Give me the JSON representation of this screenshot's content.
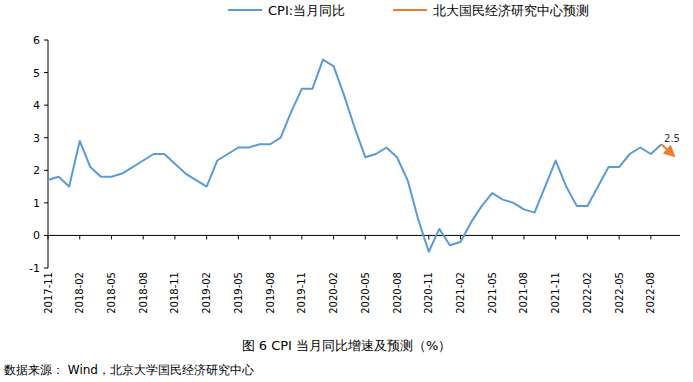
{
  "chart_data": {
    "type": "line",
    "title": "图 6 CPI 当月同比增速及预测（%）",
    "source": "数据来源：  Wind，北京大学国民经济研究中心",
    "categories": [
      "2017-11",
      null,
      null,
      "2018-02",
      null,
      null,
      "2018-05",
      null,
      null,
      "2018-08",
      null,
      null,
      "2018-11",
      null,
      null,
      "2019-02",
      null,
      null,
      "2019-05",
      null,
      null,
      "2019-08",
      null,
      null,
      "2019-11",
      null,
      null,
      "2020-02",
      null,
      null,
      "2020-05",
      null,
      null,
      "2020-08",
      null,
      null,
      "2020-11",
      null,
      null,
      "2021-02",
      null,
      null,
      "2021-05",
      null,
      null,
      "2021-08",
      null,
      null,
      "2021-11",
      null,
      null,
      "2022-02",
      null,
      null,
      "2022-05",
      null,
      null,
      "2022-08",
      null,
      null
    ],
    "series": [
      {
        "name": "CPI:当月同比",
        "color": "#5b9bd5",
        "line_style": "solid",
        "values": [
          1.7,
          1.8,
          1.5,
          2.9,
          2.1,
          1.8,
          1.8,
          1.9,
          2.1,
          2.3,
          2.5,
          2.5,
          2.2,
          1.9,
          1.7,
          1.5,
          2.3,
          2.5,
          2.7,
          2.7,
          2.8,
          2.8,
          3.0,
          3.8,
          4.5,
          4.5,
          5.4,
          5.2,
          4.3,
          3.3,
          2.4,
          2.5,
          2.7,
          2.4,
          1.7,
          0.5,
          -0.5,
          0.2,
          -0.3,
          -0.2,
          0.4,
          0.9,
          1.3,
          1.1,
          1.0,
          0.8,
          0.7,
          1.5,
          2.3,
          1.5,
          0.9,
          0.9,
          1.5,
          2.1,
          2.1,
          2.5,
          2.7,
          2.5,
          2.8,
          null
        ]
      },
      {
        "name": "北大国民经济研究中心预测",
        "color": "#ed7d31",
        "line_style": "solid",
        "marker": "arrow",
        "values": [
          null,
          null,
          null,
          null,
          null,
          null,
          null,
          null,
          null,
          null,
          null,
          null,
          null,
          null,
          null,
          null,
          null,
          null,
          null,
          null,
          null,
          null,
          null,
          null,
          null,
          null,
          null,
          null,
          null,
          null,
          null,
          null,
          null,
          null,
          null,
          null,
          null,
          null,
          null,
          null,
          null,
          null,
          null,
          null,
          null,
          null,
          null,
          null,
          null,
          null,
          null,
          null,
          null,
          null,
          null,
          null,
          null,
          null,
          2.8,
          2.5
        ],
        "value_labels": [
          null,
          null,
          null,
          null,
          null,
          null,
          null,
          null,
          null,
          null,
          null,
          null,
          null,
          null,
          null,
          null,
          null,
          null,
          null,
          null,
          null,
          null,
          null,
          null,
          null,
          null,
          null,
          null,
          null,
          null,
          null,
          null,
          null,
          null,
          null,
          null,
          null,
          null,
          null,
          null,
          null,
          null,
          null,
          null,
          null,
          null,
          null,
          null,
          null,
          null,
          null,
          null,
          null,
          null,
          null,
          null,
          null,
          null,
          null,
          "2.5"
        ]
      }
    ],
    "ylim": [
      -1,
      6
    ],
    "yticks": [
      -1,
      0,
      1,
      2,
      3,
      4,
      5,
      6
    ],
    "grid": false,
    "legend": "top"
  }
}
